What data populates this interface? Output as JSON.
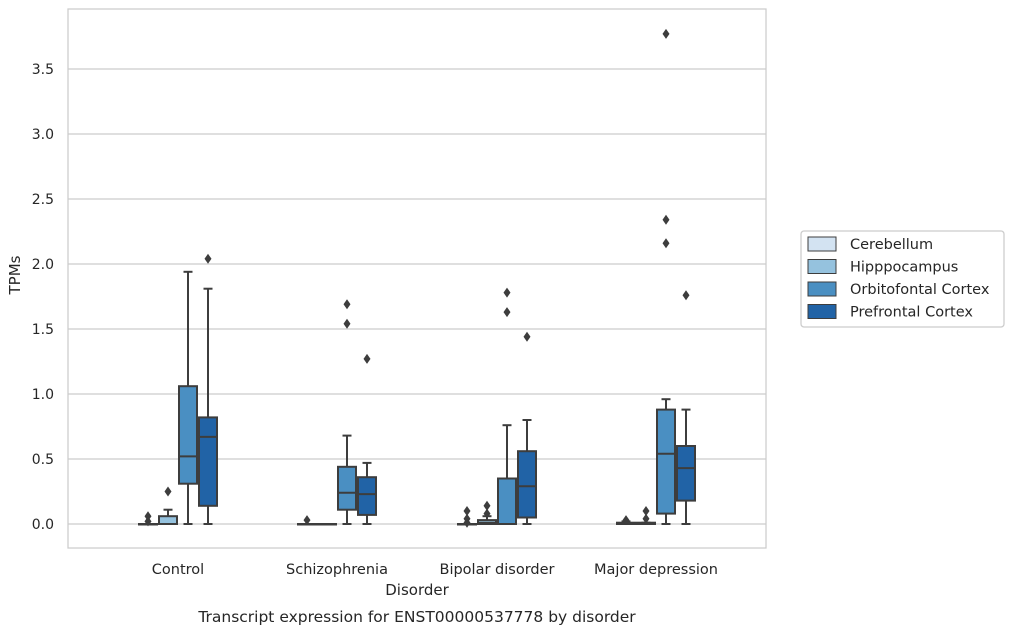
{
  "chart_data": {
    "type": "box",
    "caption": "Transcript expression for ENST00000537778 by disorder",
    "xlabel": "Disorder",
    "ylabel": "TPMs",
    "ylim": [
      -0.18,
      3.98
    ],
    "yticks": [
      0.0,
      0.5,
      1.0,
      1.5,
      2.0,
      2.5,
      3.0,
      3.5
    ],
    "ytick_labels": [
      "0.0",
      "0.5",
      "1.0",
      "1.5",
      "2.0",
      "2.5",
      "3.0",
      "3.5"
    ],
    "grid": "horizontal",
    "legend_position": "right",
    "categories": [
      "Control",
      "Schizophrenia",
      "Bipolar disorder",
      "Major depression"
    ],
    "series": [
      {
        "name": "Cerebellum",
        "color": "#d3e3f2",
        "boxes": [
          {
            "whislo": 0,
            "q1": 0,
            "med": 0,
            "q3": 0,
            "whishi": 0,
            "fliers": [
              0.02,
              0.06
            ]
          },
          {
            "whislo": 0,
            "q1": 0,
            "med": 0,
            "q3": 0,
            "whishi": 0,
            "fliers": [
              0.03
            ]
          },
          {
            "whislo": 0,
            "q1": 0,
            "med": 0,
            "q3": 0,
            "whishi": 0,
            "fliers": [
              0.01,
              0.04,
              0.1
            ]
          },
          {
            "whislo": 0,
            "q1": 0,
            "med": 0,
            "q3": 0.01,
            "whishi": 0.02,
            "fliers": [
              0.03
            ]
          }
        ]
      },
      {
        "name": "Hipppocampus",
        "color": "#95c2de",
        "boxes": [
          {
            "whislo": 0,
            "q1": 0,
            "med": 0,
            "q3": 0.06,
            "whishi": 0.11,
            "fliers": [
              0.25
            ]
          },
          {
            "whislo": 0,
            "q1": 0,
            "med": 0,
            "q3": 0,
            "whishi": 0,
            "fliers": []
          },
          {
            "whislo": 0,
            "q1": 0,
            "med": 0.01,
            "q3": 0.03,
            "whishi": 0.06,
            "fliers": [
              0.08,
              0.14
            ]
          },
          {
            "whislo": 0,
            "q1": 0,
            "med": 0,
            "q3": 0.01,
            "whishi": 0.01,
            "fliers": [
              0.04,
              0.1
            ]
          }
        ]
      },
      {
        "name": "Orbitofontal Cortex",
        "color": "#4a8fc2",
        "boxes": [
          {
            "whislo": 0,
            "q1": 0.31,
            "med": 0.52,
            "q3": 1.06,
            "whishi": 1.94,
            "fliers": []
          },
          {
            "whislo": 0,
            "q1": 0.11,
            "med": 0.24,
            "q3": 0.44,
            "whishi": 0.68,
            "fliers": [
              1.54,
              1.69
            ]
          },
          {
            "whislo": 0,
            "q1": 0,
            "med": 0,
            "q3": 0.35,
            "whishi": 0.76,
            "fliers": [
              1.63,
              1.78
            ]
          },
          {
            "whislo": 0,
            "q1": 0.08,
            "med": 0.54,
            "q3": 0.88,
            "whishi": 0.96,
            "fliers": [
              2.16,
              2.34,
              3.77
            ]
          }
        ]
      },
      {
        "name": "Prefrontal Cortex",
        "color": "#2163a6",
        "boxes": [
          {
            "whislo": 0,
            "q1": 0.14,
            "med": 0.67,
            "q3": 0.82,
            "whishi": 1.81,
            "fliers": [
              2.04
            ]
          },
          {
            "whislo": 0,
            "q1": 0.07,
            "med": 0.23,
            "q3": 0.36,
            "whishi": 0.47,
            "fliers": [
              1.27
            ]
          },
          {
            "whislo": 0,
            "q1": 0.05,
            "med": 0.29,
            "q3": 0.56,
            "whishi": 0.8,
            "fliers": [
              1.44
            ]
          },
          {
            "whislo": 0,
            "q1": 0.18,
            "med": 0.43,
            "q3": 0.6,
            "whishi": 0.88,
            "fliers": [
              1.76
            ]
          }
        ]
      }
    ]
  }
}
